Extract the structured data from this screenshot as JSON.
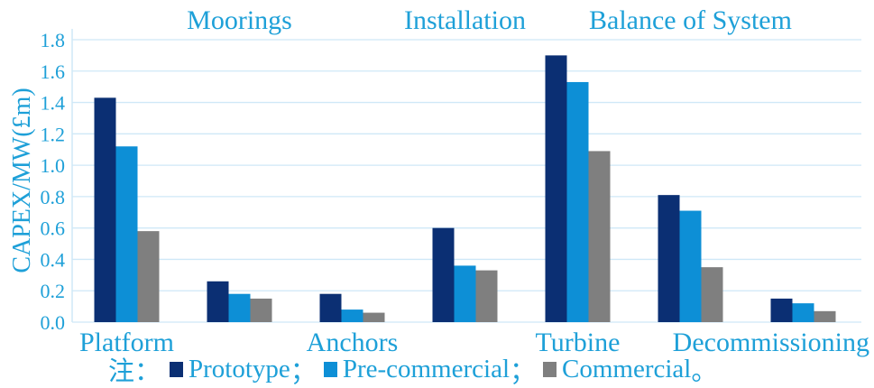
{
  "chart_data": {
    "type": "bar",
    "ylabel": "CAPEX/MW(£m)",
    "ylim": [
      0,
      1.8
    ],
    "yticks": [
      "0.0",
      "0.2",
      "0.4",
      "0.6",
      "0.8",
      "1.0",
      "1.2",
      "1.4",
      "1.6",
      "1.8"
    ],
    "grid": true,
    "categories": [
      "Platform",
      "Moorings",
      "Anchors",
      "Installation",
      "Turbine",
      "Balance of System",
      "Decommissioning"
    ],
    "category_label_row": [
      "bottom",
      "top",
      "bottom",
      "top",
      "bottom",
      "top",
      "bottom"
    ],
    "series": [
      {
        "name": "Prototype",
        "color": "#0b2f73",
        "values": [
          1.43,
          0.26,
          0.18,
          0.6,
          1.7,
          0.81,
          0.15
        ]
      },
      {
        "name": "Pre-commercial",
        "color": "#0d8fd6",
        "values": [
          1.12,
          0.18,
          0.08,
          0.36,
          1.53,
          0.71,
          0.12
        ]
      },
      {
        "name": "Commercial",
        "color": "#7f7f7f",
        "values": [
          0.58,
          0.15,
          0.06,
          0.33,
          1.09,
          0.35,
          0.07
        ]
      }
    ]
  },
  "legend": {
    "note": "注：",
    "separators": [
      "；",
      "；",
      "。"
    ]
  },
  "colors": {
    "axis_text": "#1ea0d8",
    "grid": "#cfe8f7"
  }
}
